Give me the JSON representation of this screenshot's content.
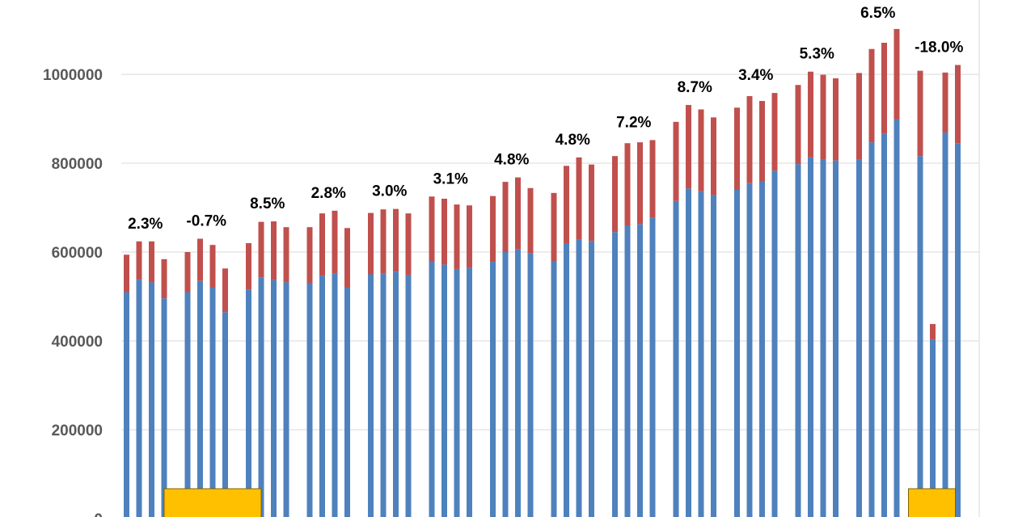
{
  "chart_data": {
    "type": "bar",
    "stacked": true,
    "grid": true,
    "legend": "none",
    "colors": {
      "bottom": "#4f81bd",
      "top": "#c0504d",
      "highlight": "#ffc000",
      "grid": "#d9d9d9",
      "ticks": "#595959",
      "labels": "#000000"
    },
    "ylim": [
      0,
      1100000
    ],
    "yticks": [
      0,
      200000,
      400000,
      600000,
      800000,
      1000000
    ],
    "ytick_labels": [
      "0",
      "200000",
      "400000",
      "600000",
      "800000",
      "1000000"
    ],
    "series": [
      {
        "values": [
          510000,
          538000,
          532000,
          496000,
          510000,
          535000,
          520000,
          465000,
          515000,
          543000,
          537000,
          532000,
          530000,
          547000,
          552000,
          520000,
          550000,
          552000,
          556000,
          548000,
          580000,
          572000,
          562000,
          564000,
          578000,
          600000,
          606000,
          598000,
          580000,
          620000,
          628000,
          625000,
          645000,
          660000,
          663000,
          677000,
          715000,
          743000,
          737000,
          728000,
          740000,
          755000,
          760000,
          783000,
          798000,
          813000,
          809000,
          806000,
          808000,
          847000,
          866000,
          898000,
          816000,
          403000,
          869000,
          845000
        ]
      },
      {
        "values": [
          84000,
          86000,
          92000,
          88000,
          90000,
          95000,
          96000,
          98000,
          105000,
          125000,
          132000,
          124000,
          126000,
          140000,
          141000,
          134000,
          138000,
          144000,
          141000,
          139000,
          145000,
          148000,
          145000,
          141000,
          148000,
          158000,
          162000,
          146000,
          153000,
          174000,
          185000,
          172000,
          171000,
          185000,
          184000,
          175000,
          178000,
          188000,
          184000,
          175000,
          185000,
          196000,
          180000,
          175000,
          178000,
          193000,
          190000,
          185000,
          195000,
          210000,
          205000,
          204000,
          192000,
          35000,
          135000,
          176000
        ]
      }
    ],
    "group_labels": [
      "2.3%",
      "-0.7%",
      "8.5%",
      "2.8%",
      "3.0%",
      "3.1%",
      "4.8%",
      "4.8%",
      "7.2%",
      "8.7%",
      "3.4%",
      "5.3%",
      "6.5%",
      "-18.0%"
    ],
    "highlight_boxes": [
      0,
      13
    ]
  }
}
